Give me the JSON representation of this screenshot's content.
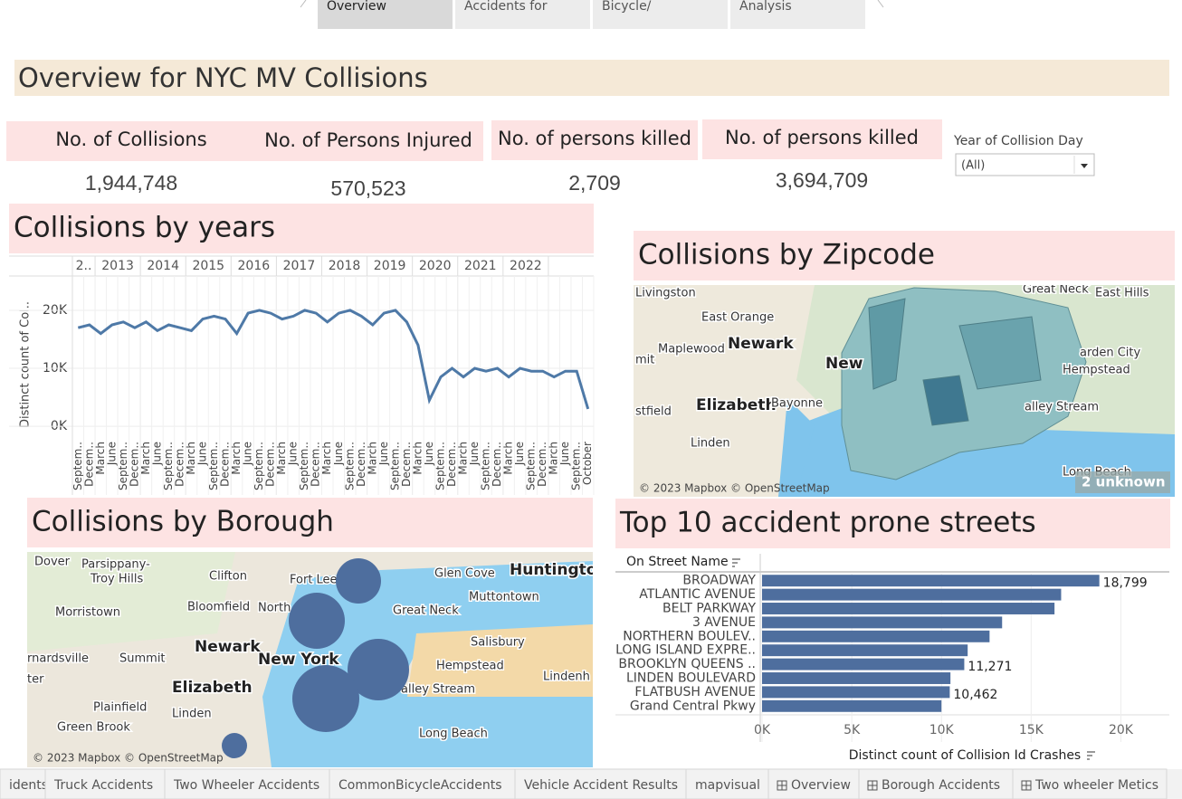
{
  "top_tabs": [
    "Overview",
    "Accidents for",
    "Bicycle/",
    "Analysis"
  ],
  "header": {
    "title": "Overview for NYC MV Collisions"
  },
  "kpis": [
    {
      "label": "No. of Collisions",
      "value": "1,944,748"
    },
    {
      "label": "No. of Persons Injured",
      "value": "570,523"
    },
    {
      "label": "No. of persons killed",
      "value": "2,709"
    },
    {
      "label": "No. of persons killed",
      "value": "3,694,709"
    }
  ],
  "filter": {
    "label": "Year of Collision Day",
    "value": "(All)"
  },
  "years_chart": {
    "type": "line",
    "title": "Collisions by years",
    "y_label": "Distinct count of Col..",
    "years": [
      "2..",
      "2013",
      "2014",
      "2015",
      "2016",
      "2017",
      "2018",
      "2019",
      "2020",
      "2021",
      "2022",
      null
    ],
    "categories": [
      "Septem..",
      "Decem..",
      "March",
      "June",
      "Septem..",
      "Decem..",
      "March",
      "June",
      "Septem..",
      "Decem..",
      "March",
      "June",
      "Septem..",
      "Decem..",
      "March",
      "June",
      "Septem..",
      "Decem..",
      "March",
      "June",
      "Septem..",
      "Decem..",
      "March",
      "June",
      "Septem..",
      "Decem..",
      "March",
      "June",
      "Septem..",
      "Decem..",
      "March",
      "June",
      "Septem..",
      "Decem..",
      "March",
      "June",
      "Septem..",
      "Decem..",
      "March",
      "June",
      "Septem..",
      "Decem..",
      "March",
      "June",
      "Septem..",
      "October"
    ],
    "color": "#4e79a7",
    "values": [
      17000,
      17500,
      16000,
      17500,
      18000,
      17000,
      18000,
      16500,
      17500,
      17000,
      16500,
      18500,
      19000,
      18500,
      16000,
      19500,
      20000,
      19500,
      18500,
      19000,
      20000,
      19500,
      18000,
      19500,
      20000,
      19000,
      17500,
      19500,
      20000,
      18000,
      14000,
      4500,
      8500,
      10000,
      8500,
      10000,
      9500,
      10000,
      8500,
      10000,
      9500,
      9500,
      8500,
      9500,
      9500,
      3000
    ],
    "ylim": [
      -1700,
      22800
    ],
    "yticks": [
      {
        "value": 0,
        "label": "0K"
      },
      {
        "value": 10000,
        "label": "10K"
      },
      {
        "value": 20000,
        "label": "20K"
      }
    ],
    "grid": true
  },
  "zip_map": {
    "title": "Collisions by Zipcode",
    "places": [
      "Livingston",
      "East Orange",
      "Great Neck",
      "East Hills",
      "Maplewood",
      "Newark",
      "mit",
      "arden City",
      "Hempstead",
      "Elizabeth",
      "Bayonne",
      "stfield",
      "alley Stream",
      "Linden",
      "Long Beach",
      "New"
    ],
    "attribution": "© 2023 Mapbox © OpenStreetMap",
    "unknown": "2 unknown"
  },
  "borough_map": {
    "title": "Collisions by Borough",
    "places": [
      "Dover",
      "Parsippany-",
      "Troy Hills",
      "Clifton",
      "Fort Lee",
      "Glen Cove",
      "Huntington",
      "Muttontown",
      "Morristown",
      "Bloomfield",
      "North",
      "Great Neck",
      "Newark",
      "Salisbury",
      "rnardsville",
      "Summit",
      "New York",
      "Hempstead",
      "Lindenh",
      "ter",
      "Elizabeth",
      "alley Stream",
      "Plainfield",
      "Linden",
      "Green Brook",
      "Long Beach"
    ],
    "attribution": "© 2023 Mapbox © OpenStreetMap"
  },
  "streets_chart": {
    "type": "bar",
    "title": "Top 10 accident prone streets",
    "category_label": "On Street Name",
    "x_label": "Distinct count of Collision Id Crashes",
    "categories": [
      "BROADWAY",
      "ATLANTIC AVENUE",
      "BELT PARKWAY",
      "3 AVENUE",
      "NORTHERN BOULEV..",
      "LONG ISLAND EXPRE..",
      "BROOKLYN QUEENS ..",
      "LINDEN BOULEVARD",
      "FLATBUSH AVENUE",
      "Grand Central Pkwy"
    ],
    "values": [
      18799,
      16670,
      16300,
      13380,
      12680,
      11460,
      11271,
      10500,
      10462,
      10000
    ],
    "value_labels": [
      "18,799",
      null,
      null,
      null,
      null,
      null,
      "11,271",
      null,
      "10,462",
      null
    ],
    "color": "#4e6e9e",
    "xlim": [
      0,
      22700
    ],
    "xticks": [
      {
        "value": 0,
        "label": "0K"
      },
      {
        "value": 5000,
        "label": "5K"
      },
      {
        "value": 10000,
        "label": "10K"
      },
      {
        "value": 15000,
        "label": "15K"
      },
      {
        "value": 20000,
        "label": "20K"
      }
    ]
  },
  "bottom_tabs": [
    "idents",
    "Truck Accidents",
    "Two Wheeler Accidents",
    "CommonBicycleAccidents",
    "Vehicle Accident Results",
    "mapvisual",
    "Overview",
    "Borough Accidents",
    "Two wheeler Metics"
  ]
}
